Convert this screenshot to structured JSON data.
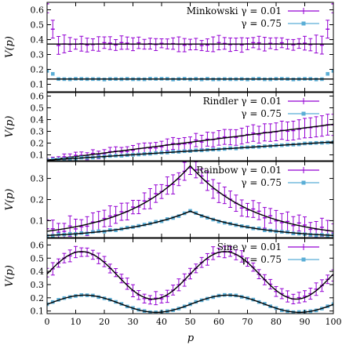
{
  "xlabel": "p",
  "ylabel": "V(p)",
  "x_ticks": [
    0,
    10,
    20,
    30,
    40,
    50,
    60,
    70,
    80,
    90,
    100
  ],
  "chart_data": [
    {
      "type": "line",
      "panel": "Minkowski",
      "xlim": [
        0,
        100
      ],
      "ylim": [
        0.05,
        0.65
      ],
      "y_ticks": [
        0.1,
        0.2,
        0.3,
        0.4,
        0.5,
        0.6
      ],
      "y_tick_labels": [
        "0.1",
        "0.2",
        "0.3",
        "0.4",
        "0.5",
        "0.6"
      ],
      "legend": [
        "Minkowski γ = 0.01",
        "γ = 0.75"
      ],
      "legend_placement": "top-right",
      "series": [
        {
          "gamma": 0.01,
          "color": "#9400d3",
          "marker": "cross-errorbar",
          "endpoints": [
            [
              0,
              0.64
            ],
            [
              1,
              0.51
            ],
            [
              99,
              0.51
            ],
            [
              100,
              0.64
            ]
          ],
          "mid_level": 0.37,
          "theory_level": 0.37
        },
        {
          "gamma": 0.75,
          "color": "#5aaed6",
          "marker": "filled-square",
          "endpoints": [
            [
              0,
              0.19
            ],
            [
              100,
              0.19
            ]
          ],
          "mid_level": 0.135,
          "theory_level": 0.135
        }
      ]
    },
    {
      "type": "line",
      "panel": "Rindler",
      "xlim": [
        0,
        100
      ],
      "ylim": [
        0.05,
        0.63
      ],
      "y_ticks": [
        0.1,
        0.2,
        0.3,
        0.4,
        0.5,
        0.6
      ],
      "y_tick_labels": [
        "0.1",
        "0.2",
        "0.3",
        "0.4",
        "0.5",
        "0.6"
      ],
      "legend": [
        "Rindler γ = 0.01",
        "γ = 0.75"
      ],
      "legend_placement": "top-right",
      "series": [
        {
          "gamma": 0.01,
          "color": "#9400d3",
          "marker": "cross-errorbar",
          "theory_points": [
            [
              0,
              0.055
            ],
            [
              100,
              0.36
            ]
          ]
        },
        {
          "gamma": 0.75,
          "color": "#5aaed6",
          "marker": "filled-square",
          "theory_points": [
            [
              0,
              0.055
            ],
            [
              100,
              0.21
            ]
          ]
        }
      ]
    },
    {
      "type": "line",
      "panel": "Rainbow",
      "xlim": [
        0,
        100
      ],
      "ylim": [
        0.02,
        0.38
      ],
      "y_ticks": [
        0.1,
        0.2,
        0.3
      ],
      "y_tick_labels": [
        "0.1",
        "0.2",
        "0.3"
      ],
      "legend": [
        "Rainbow γ = 0.01",
        "γ = 0.75"
      ],
      "legend_placement": "top-right",
      "series": [
        {
          "gamma": 0.01,
          "color": "#9400d3",
          "marker": "cross-errorbar",
          "theory_points": [
            [
              0,
              0.05
            ],
            [
              50,
              0.36
            ],
            [
              100,
              0.05
            ]
          ]
        },
        {
          "gamma": 0.75,
          "color": "#5aaed6",
          "marker": "filled-square",
          "theory_points": [
            [
              0,
              0.03
            ],
            [
              50,
              0.145
            ],
            [
              100,
              0.03
            ]
          ]
        }
      ]
    },
    {
      "type": "line",
      "panel": "Sine",
      "xlim": [
        0,
        100
      ],
      "ylim": [
        0.08,
        0.65
      ],
      "y_ticks": [
        0.1,
        0.2,
        0.3,
        0.4,
        0.5,
        0.6
      ],
      "y_tick_labels": [
        "0.1",
        "0.2",
        "0.3",
        "0.4",
        "0.5",
        "0.6"
      ],
      "legend": [
        "Sine γ = 0.01",
        "γ = 0.75"
      ],
      "legend_placement": "top-right",
      "series": [
        {
          "gamma": 0.01,
          "color": "#9400d3",
          "marker": "cross-errorbar",
          "theory_points": [
            [
              0,
              0.38
            ],
            [
              12,
              0.55
            ],
            [
              25,
              0.33
            ],
            [
              37,
              0.19
            ],
            [
              50,
              0.35
            ],
            [
              62,
              0.55
            ],
            [
              75,
              0.33
            ],
            [
              88,
              0.19
            ],
            [
              100,
              0.38
            ]
          ]
        },
        {
          "gamma": 0.75,
          "color": "#5aaed6",
          "marker": "filled-square",
          "theory_points": [
            [
              0,
              0.15
            ],
            [
              12,
              0.22
            ],
            [
              25,
              0.15
            ],
            [
              37,
              0.09
            ],
            [
              50,
              0.15
            ],
            [
              62,
              0.22
            ],
            [
              75,
              0.15
            ],
            [
              88,
              0.09
            ],
            [
              100,
              0.15
            ]
          ]
        }
      ]
    }
  ]
}
